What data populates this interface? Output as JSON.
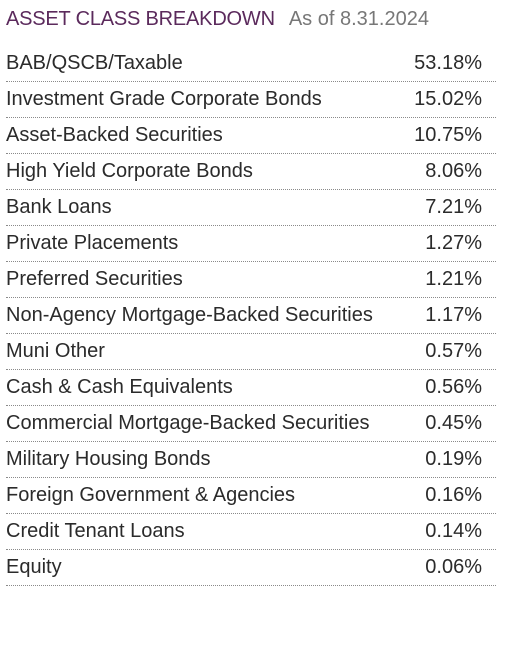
{
  "header": {
    "title": "ASSET CLASS BREAKDOWN",
    "as_of": "As of 8.31.2024"
  },
  "rows": [
    {
      "label": "BAB/QSCB/Taxable",
      "value": "53.18%"
    },
    {
      "label": "Investment Grade Corporate Bonds",
      "value": "15.02%"
    },
    {
      "label": "Asset-Backed Securities",
      "value": "10.75%"
    },
    {
      "label": "High Yield Corporate Bonds",
      "value": "8.06%"
    },
    {
      "label": "Bank Loans",
      "value": "7.21%"
    },
    {
      "label": "Private Placements",
      "value": "1.27%"
    },
    {
      "label": "Preferred Securities",
      "value": "1.21%"
    },
    {
      "label": "Non-Agency Mortgage-Backed Securities",
      "value": "1.17%"
    },
    {
      "label": "Muni Other",
      "value": "0.57%"
    },
    {
      "label": "Cash & Cash Equivalents",
      "value": "0.56%"
    },
    {
      "label": "Commercial Mortgage-Backed Securities",
      "value": "0.45%"
    },
    {
      "label": "Military Housing Bonds",
      "value": "0.19%"
    },
    {
      "label": "Foreign Government & Agencies",
      "value": "0.16%"
    },
    {
      "label": "Credit Tenant Loans",
      "value": "0.14%"
    },
    {
      "label": "Equity",
      "value": "0.06%"
    }
  ],
  "colors": {
    "title": "#5b2a5c",
    "as_of": "#777777",
    "text": "#2b2b2b"
  }
}
